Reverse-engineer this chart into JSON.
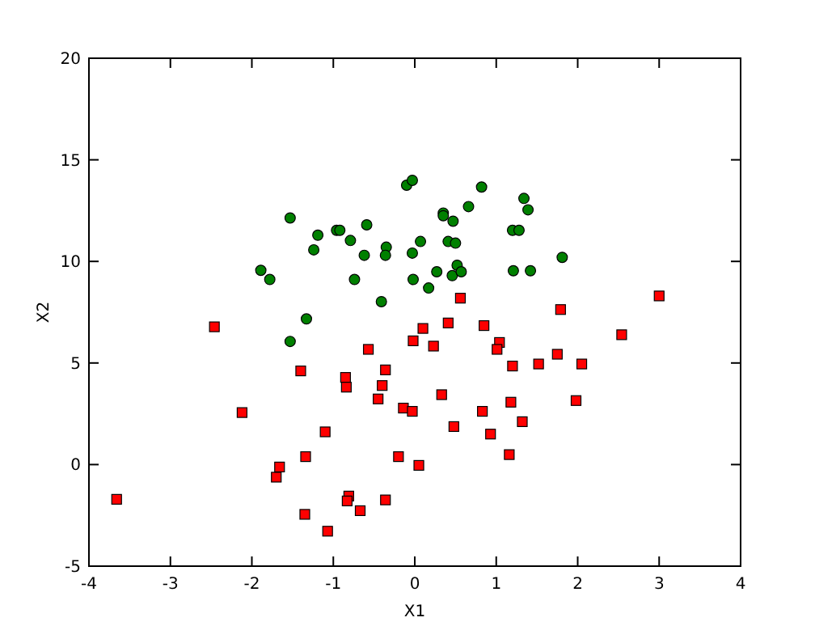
{
  "chart_data": {
    "type": "scatter",
    "xlabel": "X1",
    "ylabel": "X2",
    "xlim": [
      -4,
      4
    ],
    "ylim": [
      -5,
      20
    ],
    "xticks": [
      -4,
      -3,
      -2,
      -1,
      0,
      1,
      2,
      3,
      4
    ],
    "yticks": [
      -5,
      0,
      5,
      10,
      15,
      20
    ],
    "grid": false,
    "series": [
      {
        "color": "#008000",
        "marker": "circle",
        "x": [
          -0.1,
          -0.03,
          -1.53,
          -1.19,
          -0.96,
          -0.92,
          -0.59,
          -0.79,
          -1.24,
          -0.35,
          -0.62,
          -0.36,
          -0.03,
          0.07,
          -1.89,
          -1.78,
          -0.74,
          -0.02,
          -0.41,
          -1.33,
          -1.53,
          0.82,
          1.34,
          1.39,
          0.66,
          0.35,
          0.35,
          0.47,
          1.2,
          1.28,
          0.41,
          0.5,
          1.81,
          0.52,
          0.27,
          0.46,
          0.57,
          1.21,
          1.42,
          0.17
        ],
        "values": [
          13.75,
          13.99,
          12.14,
          11.29,
          11.53,
          11.53,
          11.8,
          11.03,
          10.57,
          10.7,
          10.3,
          10.3,
          10.41,
          10.98,
          9.56,
          9.11,
          9.11,
          9.11,
          8.02,
          7.17,
          6.06,
          13.66,
          13.1,
          12.54,
          12.7,
          12.38,
          12.25,
          11.98,
          11.53,
          11.53,
          10.98,
          10.9,
          10.2,
          9.81,
          9.49,
          9.3,
          9.49,
          9.54,
          9.54,
          8.69
        ]
      },
      {
        "color": "#ff0000",
        "marker": "square",
        "x": [
          -2.46,
          -3.66,
          -1.4,
          -0.57,
          -0.02,
          -0.36,
          -0.85,
          -0.84,
          -0.4,
          -0.45,
          -2.12,
          -0.14,
          -0.03,
          -1.1,
          -1.34,
          -0.2,
          0.05,
          -1.66,
          -1.7,
          -0.81,
          -0.83,
          -0.36,
          -0.67,
          -1.35,
          -1.07,
          0.1,
          0.56,
          3.0,
          1.79,
          0.41,
          0.85,
          0.23,
          2.54,
          1.04,
          1.01,
          1.2,
          1.52,
          1.75,
          2.05,
          0.33,
          1.18,
          1.98,
          0.83,
          0.48,
          1.32,
          0.93,
          1.16
        ],
        "values": [
          6.78,
          -1.71,
          4.61,
          5.67,
          6.09,
          4.66,
          4.29,
          3.81,
          3.89,
          3.23,
          2.56,
          2.78,
          2.62,
          1.61,
          0.39,
          0.39,
          -0.04,
          -0.12,
          -0.62,
          -1.55,
          -1.79,
          -1.74,
          -2.27,
          -2.45,
          -3.28,
          6.7,
          8.19,
          8.3,
          7.63,
          6.97,
          6.84,
          5.83,
          6.39,
          6.01,
          5.67,
          4.85,
          4.95,
          5.43,
          4.95,
          3.44,
          3.07,
          3.15,
          2.62,
          1.87,
          2.11,
          1.5,
          0.49
        ]
      }
    ]
  }
}
